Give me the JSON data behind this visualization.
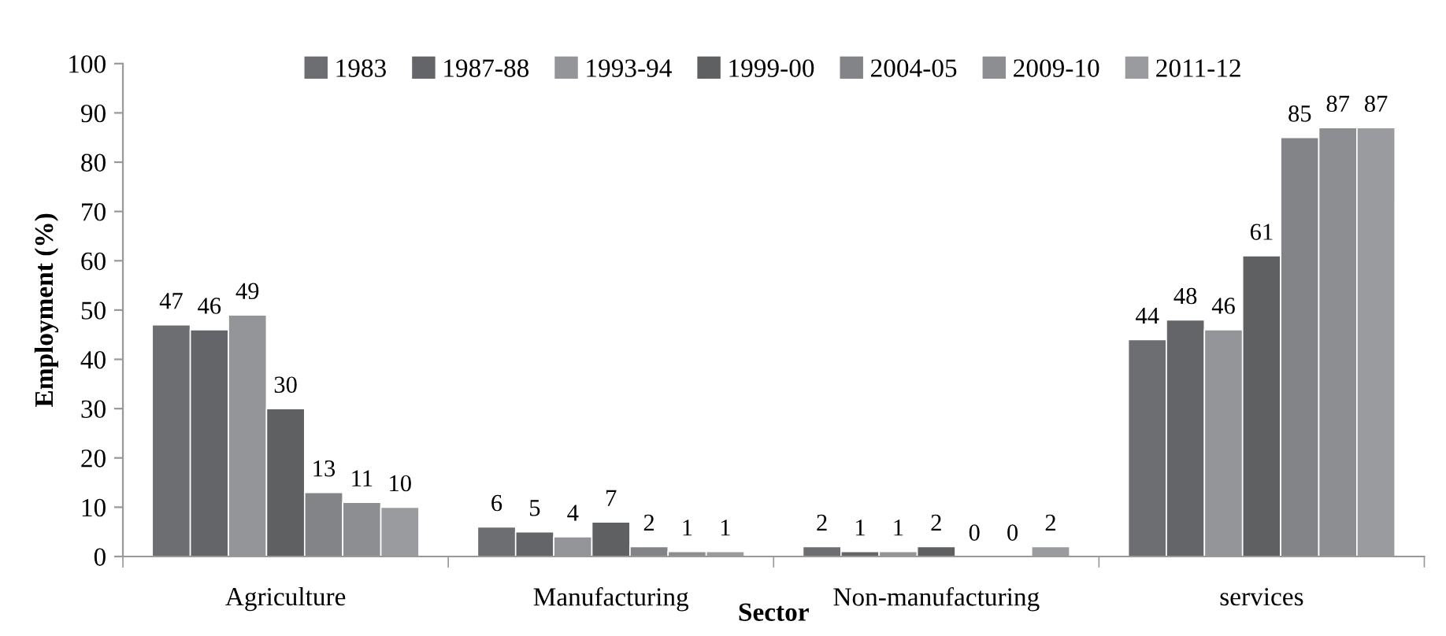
{
  "chart_data": {
    "type": "bar",
    "xlabel": "Sector",
    "ylabel": "Employment (%)",
    "categories": [
      "Agriculture",
      "Manufacturing",
      "Non-manufacturing",
      "services"
    ],
    "series": [
      {
        "name": "1983",
        "color": "#6d6e71",
        "values": [
          47,
          6,
          2,
          44
        ]
      },
      {
        "name": "1987-88",
        "color": "#646569",
        "values": [
          46,
          5,
          1,
          48
        ]
      },
      {
        "name": "1993-94",
        "color": "#939598",
        "values": [
          49,
          4,
          1,
          46
        ]
      },
      {
        "name": "1999-00",
        "color": "#5f6062",
        "values": [
          30,
          7,
          2,
          61
        ]
      },
      {
        "name": "2004-05",
        "color": "#838487",
        "values": [
          13,
          2,
          0,
          85
        ]
      },
      {
        "name": "2009-10",
        "color": "#8d8e91",
        "values": [
          11,
          1,
          0,
          87
        ]
      },
      {
        "name": "2011-12",
        "color": "#9a9b9e",
        "values": [
          10,
          1,
          2,
          87
        ]
      }
    ],
    "ylim": [
      0,
      100
    ],
    "yticks": [
      0,
      10,
      20,
      30,
      40,
      50,
      60,
      70,
      80,
      90,
      100
    ],
    "data_labels": true,
    "grid": false,
    "legend": "top"
  }
}
